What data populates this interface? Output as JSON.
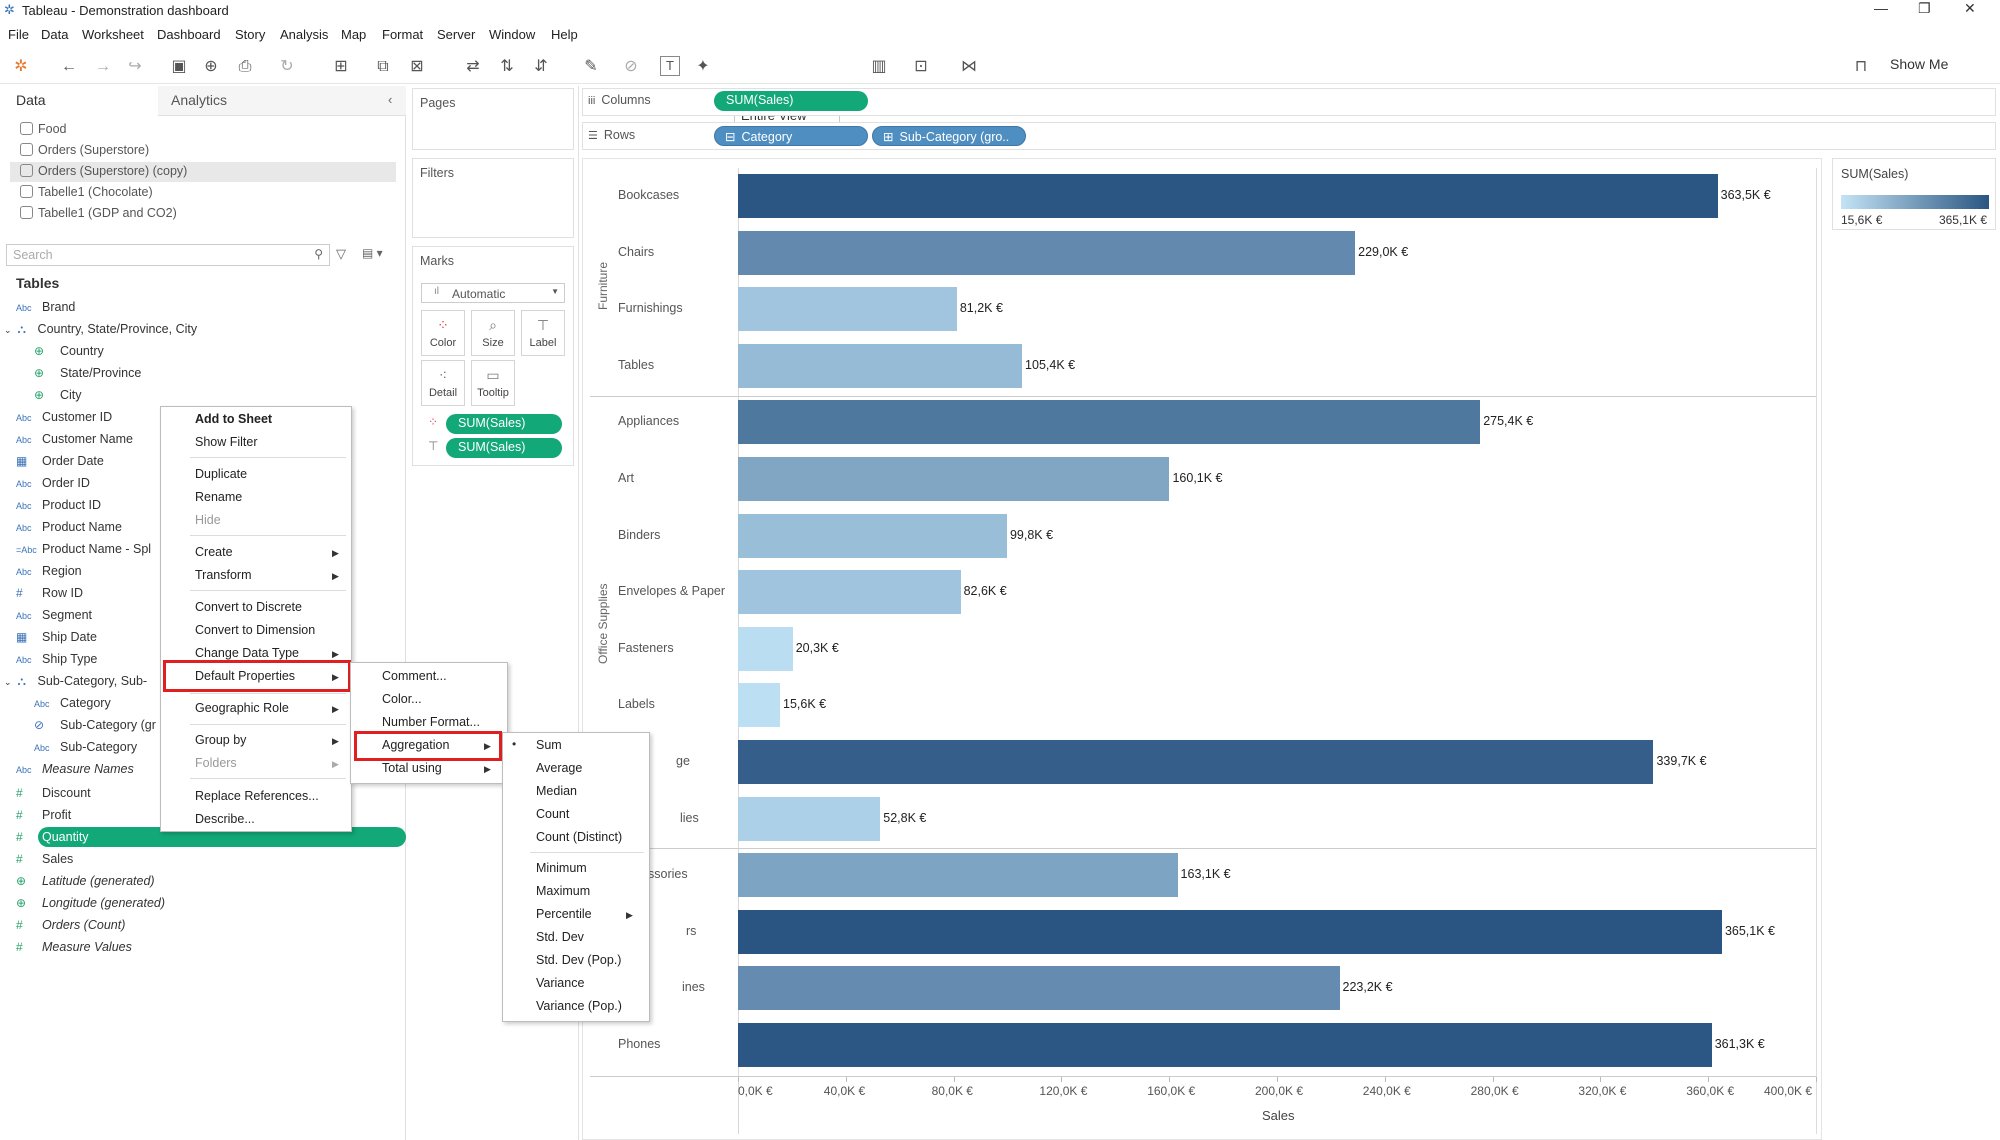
{
  "window": {
    "title": "Tableau - Demonstration dashboard"
  },
  "menubar": [
    "File",
    "Data",
    "Worksheet",
    "Dashboard",
    "Story",
    "Analysis",
    "Map",
    "Format",
    "Server",
    "Window",
    "Help"
  ],
  "toolbar": {
    "fit_select": "Entire View",
    "show_me": "Show Me"
  },
  "data_pane": {
    "tab_data": "Data",
    "tab_analytics": "Analytics",
    "datasources": [
      "Food",
      "Orders (Superstore)",
      "Orders (Superstore) (copy)",
      "Tabelle1 (Chocolate)",
      "Tabelle1 (GDP and CO2)"
    ],
    "search_placeholder": "Search",
    "tables_header": "Tables",
    "fields": [
      "Brand",
      "Country, State/Province, City",
      "Country",
      "State/Province",
      "City",
      "Customer ID",
      "Customer Name",
      "Order Date",
      "Order ID",
      "Product ID",
      "Product Name",
      "Product Name - Spl",
      "Region",
      "Row ID",
      "Segment",
      "Ship Date",
      "Ship Type",
      "Sub-Category, Sub-",
      "Category",
      "Sub-Category (gr",
      "Sub-Category",
      "Measure Names",
      "Discount",
      "Profit",
      "Quantity",
      "Sales",
      "Latitude (generated)",
      "Longitude (generated)",
      "Orders (Count)",
      "Measure Values"
    ]
  },
  "shelves": {
    "pages": "Pages",
    "filters": "Filters",
    "marks": "Marks",
    "marks_type": "Automatic",
    "mark_buttons": [
      "Color",
      "Size",
      "Label",
      "Detail",
      "Tooltip"
    ],
    "mark_pills": [
      "SUM(Sales)",
      "SUM(Sales)"
    ],
    "columns_label": "Columns",
    "rows_label": "Rows",
    "columns_pill": "SUM(Sales)",
    "rows_pills": [
      "Category",
      "Sub-Category (gro.."
    ]
  },
  "context_menu": {
    "items": [
      "Add to Sheet",
      "Show Filter",
      "Duplicate",
      "Rename",
      "Hide",
      "Create",
      "Transform",
      "Convert to Discrete",
      "Convert to Dimension",
      "Change Data Type",
      "Default Properties",
      "Geographic Role",
      "Group by",
      "Folders",
      "Replace References...",
      "Describe..."
    ]
  },
  "submenu_default_properties": [
    "Comment...",
    "Color...",
    "Number Format...",
    "Aggregation",
    "Total using"
  ],
  "submenu_aggregation": [
    "Sum",
    "Average",
    "Median",
    "Count",
    "Count (Distinct)",
    "Minimum",
    "Maximum",
    "Percentile",
    "Std. Dev",
    "Std. Dev (Pop.)",
    "Variance",
    "Variance (Pop.)"
  ],
  "legend": {
    "title": "SUM(Sales)",
    "min": "15,6K €",
    "max": "365,1K €"
  },
  "colors": {
    "accent_green": "#12a877",
    "highlight_red": "#e02020",
    "bar_dark": "#2f5b87",
    "bar_light": "#b6d9ef"
  },
  "chart_data": {
    "type": "bar",
    "orientation": "horizontal",
    "xlabel": "Sales",
    "xlim": [
      0,
      400
    ],
    "x_ticks": [
      "0,0K €",
      "40,0K €",
      "80,0K €",
      "120,0K €",
      "160,0K €",
      "200,0K €",
      "240,0K €",
      "280,0K €",
      "320,0K €",
      "360,0K €",
      "400,0K €"
    ],
    "groups": [
      "Furniture",
      "Office Supplies"
    ],
    "category_labels": [
      "Bookcases",
      "Chairs",
      "Furnishings",
      "Tables",
      "Appliances",
      "Art",
      "Binders",
      "Envelopes & Paper",
      "Fasteners",
      "Labels",
      "ge",
      "lies",
      "ssories",
      "rs",
      "ines",
      "Phones"
    ],
    "values": [
      363.5,
      229.0,
      81.2,
      105.4,
      275.4,
      160.1,
      99.8,
      82.6,
      20.3,
      15.6,
      339.7,
      52.8,
      163.1,
      365.1,
      223.2,
      361.3
    ],
    "value_labels": [
      "363,5K €",
      "229,0K €",
      "81,2K €",
      "105,4K €",
      "275,4K €",
      "160,1K €",
      "99,8K €",
      "82,6K €",
      "20,3K €",
      "15,6K €",
      "339,7K €",
      "52,8K €",
      "163,1K €",
      "365,1K €",
      "223,2K €",
      "361,3K €"
    ]
  }
}
